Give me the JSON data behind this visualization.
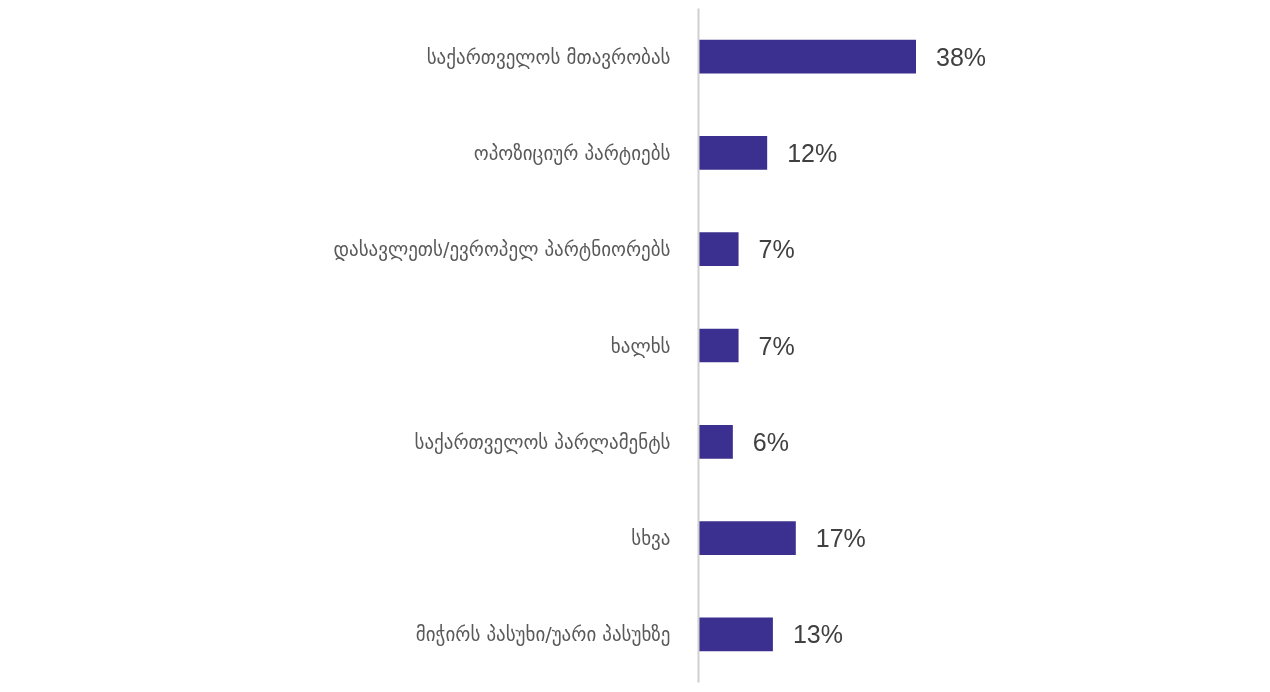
{
  "chart_data": {
    "type": "bar",
    "orientation": "horizontal",
    "categories": [
      "საქართველოს მთავრობას",
      "ოპოზიციურ პარტიებს",
      "დასავლეთს/ევროპელ პარტნიორებს",
      "ხალხს",
      "საქართველოს პარლამენტს",
      "სხვა",
      "მიჭირს პასუხი/უარი პასუხზე"
    ],
    "values": [
      38,
      12,
      7,
      7,
      6,
      17,
      13
    ],
    "value_labels": [
      "38%",
      "12%",
      "7%",
      "7%",
      "6%",
      "17%",
      "13%"
    ],
    "color": "#3b2f8f"
  }
}
